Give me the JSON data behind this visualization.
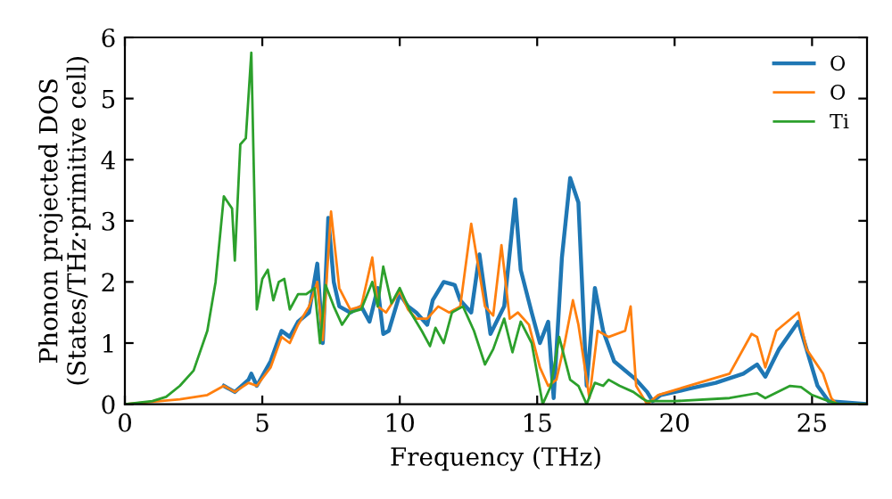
{
  "chart_data": {
    "type": "line",
    "xlabel": "Frequency (THz)",
    "ylabel": "Phonon projected DOS\n(States/THz·primitive cell)",
    "xlim": [
      0,
      27
    ],
    "ylim": [
      0,
      6
    ],
    "xticks": [
      0,
      5,
      10,
      15,
      20,
      25
    ],
    "yticks": [
      0,
      1,
      2,
      3,
      4,
      5,
      6
    ],
    "legend": "top right",
    "grid": false,
    "series": [
      {
        "name": "O",
        "color": "#1f77b4",
        "x": [
          3.6,
          4.0,
          4.5,
          4.6,
          4.8,
          5.3,
          5.7,
          6.0,
          6.3,
          6.7,
          7.0,
          7.2,
          7.4,
          7.6,
          7.8,
          8.2,
          8.6,
          8.9,
          9.2,
          9.4,
          9.6,
          10.0,
          10.3,
          10.6,
          11.0,
          11.2,
          11.6,
          12.0,
          12.2,
          12.6,
          12.9,
          13.3,
          13.8,
          14.2,
          14.4,
          14.8,
          15.1,
          15.4,
          15.6,
          15.9,
          16.2,
          16.5,
          16.8,
          17.1,
          17.4,
          17.8,
          18.6,
          19.0,
          19.2,
          19.5,
          20.5,
          21.5,
          22.5,
          23.0,
          23.3,
          23.8,
          24.5,
          24.8,
          25.2,
          25.6,
          27
        ],
        "values": [
          0.3,
          0.2,
          0.4,
          0.5,
          0.3,
          0.7,
          1.2,
          1.1,
          1.35,
          1.5,
          2.3,
          1.0,
          3.05,
          2.0,
          1.6,
          1.5,
          1.6,
          1.35,
          1.9,
          1.15,
          1.2,
          1.8,
          1.6,
          1.5,
          1.3,
          1.7,
          2.0,
          1.95,
          1.7,
          1.5,
          2.45,
          1.15,
          1.6,
          3.35,
          2.2,
          1.5,
          1.0,
          1.35,
          0.1,
          2.4,
          3.7,
          3.3,
          0.3,
          1.9,
          1.2,
          0.7,
          0.4,
          0.2,
          0.05,
          0.15,
          0.25,
          0.35,
          0.5,
          0.65,
          0.45,
          0.9,
          1.35,
          0.9,
          0.3,
          0.05,
          0
        ]
      },
      {
        "name": "O",
        "color": "#ff7f0e",
        "x": [
          0,
          2,
          3,
          3.6,
          4.0,
          4.5,
          4.8,
          5.3,
          5.7,
          6.0,
          6.3,
          6.7,
          7.0,
          7.2,
          7.5,
          7.8,
          8.2,
          8.6,
          9.0,
          9.2,
          9.5,
          10.0,
          10.3,
          10.6,
          11.0,
          11.4,
          11.8,
          12.2,
          12.6,
          13.1,
          13.4,
          13.7,
          14.0,
          14.3,
          14.7,
          15.1,
          15.4,
          15.7,
          16.0,
          16.3,
          16.5,
          16.9,
          17.2,
          17.6,
          18.2,
          18.4,
          18.6,
          19.0,
          19.4,
          22,
          22.8,
          23.0,
          23.3,
          23.7,
          24.5,
          24.8,
          25.4,
          25.7,
          25.9,
          27
        ],
        "values": [
          0,
          0.08,
          0.15,
          0.3,
          0.2,
          0.35,
          0.3,
          0.6,
          1.1,
          1.0,
          1.3,
          1.6,
          2.0,
          1.05,
          3.15,
          1.9,
          1.55,
          1.6,
          2.4,
          1.6,
          1.5,
          1.85,
          1.55,
          1.4,
          1.4,
          1.6,
          1.5,
          1.6,
          2.95,
          1.6,
          1.45,
          2.6,
          1.4,
          1.5,
          1.3,
          0.6,
          0.3,
          0.4,
          1.0,
          1.7,
          1.3,
          0.1,
          1.2,
          1.1,
          1.2,
          1.6,
          0.3,
          0.0,
          0.15,
          0.5,
          1.15,
          1.1,
          0.6,
          1.2,
          1.5,
          0.9,
          0.5,
          0.1,
          0,
          0
        ]
      },
      {
        "name": "Ti",
        "color": "#2ca02c",
        "x": [
          0,
          1,
          1.5,
          2,
          2.5,
          3,
          3.3,
          3.6,
          3.9,
          4.0,
          4.2,
          4.4,
          4.6,
          4.8,
          5.0,
          5.2,
          5.4,
          5.6,
          5.8,
          6.0,
          6.3,
          6.6,
          6.9,
          7.1,
          7.3,
          7.6,
          7.9,
          8.2,
          8.6,
          9.0,
          9.2,
          9.4,
          9.7,
          10.0,
          10.4,
          10.8,
          11.1,
          11.3,
          11.6,
          11.9,
          12.3,
          12.7,
          13.1,
          13.4,
          13.8,
          14.1,
          14.4,
          14.8,
          15.2,
          15.5,
          15.8,
          16.2,
          16.5,
          16.8,
          17.1,
          17.4,
          17.6,
          18,
          18.5,
          18.8,
          19.0,
          20,
          22,
          23,
          23.3,
          24.2,
          24.6,
          25.0,
          25.6,
          26,
          27
        ],
        "values": [
          0,
          0.05,
          0.12,
          0.3,
          0.55,
          1.2,
          2.0,
          3.4,
          3.2,
          2.35,
          4.25,
          4.35,
          5.75,
          1.55,
          2.05,
          2.2,
          1.7,
          2.0,
          2.05,
          1.55,
          1.8,
          1.8,
          1.9,
          1.0,
          1.95,
          1.6,
          1.3,
          1.5,
          1.55,
          2.0,
          1.6,
          2.25,
          1.65,
          1.9,
          1.5,
          1.2,
          0.95,
          1.25,
          1.0,
          1.5,
          1.6,
          1.2,
          0.65,
          0.9,
          1.4,
          0.85,
          1.35,
          1.0,
          0.0,
          0.3,
          1.1,
          0.4,
          0.3,
          0.0,
          0.35,
          0.3,
          0.4,
          0.3,
          0.2,
          0.1,
          0.05,
          0.05,
          0.1,
          0.18,
          0.1,
          0.3,
          0.28,
          0.15,
          0.05,
          0,
          0
        ]
      }
    ]
  }
}
